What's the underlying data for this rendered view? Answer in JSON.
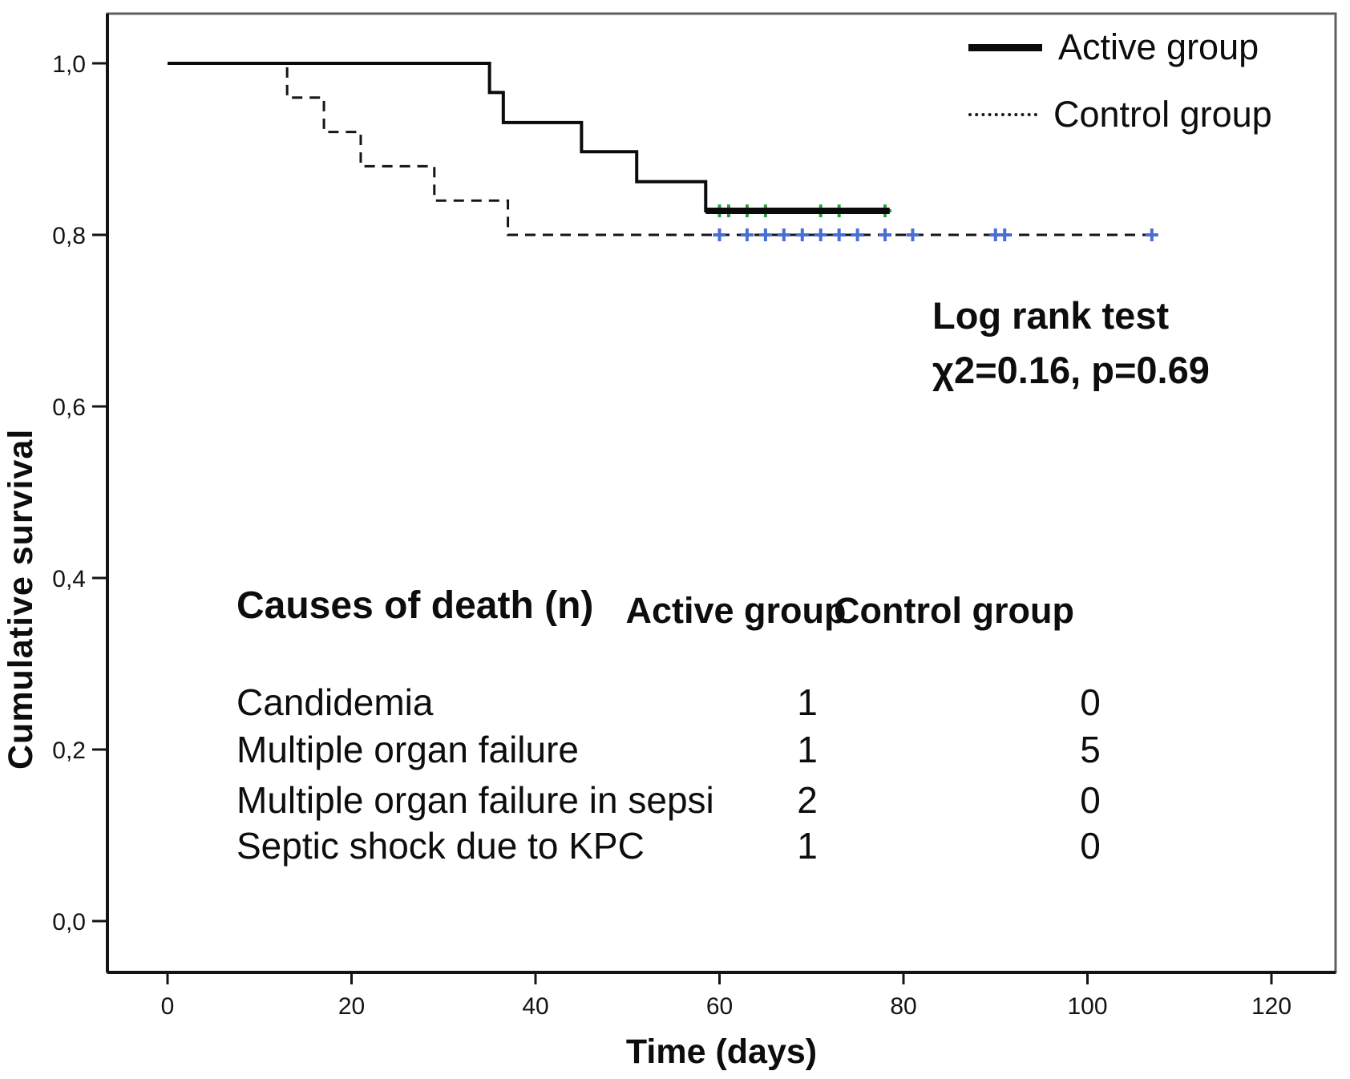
{
  "legend": {
    "items": [
      {
        "label": "Active group",
        "swatch": "solid-line"
      },
      {
        "label": "Control group",
        "swatch": "dotted-line"
      }
    ]
  },
  "stats_annotation": {
    "line1": "Log rank test",
    "line2": "χ2=0.16, p=0.69"
  },
  "causes_table": {
    "title": "Causes of death (n)",
    "col_active": "Active group",
    "col_control": "Control group",
    "rows": [
      {
        "cause": "Candidemia",
        "active": "1",
        "control": "0"
      },
      {
        "cause": "Multiple organ failure",
        "active": "1",
        "control": "5"
      },
      {
        "cause": "Multiple organ failure  in sepsi",
        "active": "2",
        "control": "0"
      },
      {
        "cause": "Septic shock due to KPC",
        "active": "1",
        "control": "0"
      }
    ]
  },
  "chart_data": {
    "type": "line",
    "subtype": "kaplan-meier-step",
    "title": "",
    "xlabel": "Time (days)",
    "ylabel": "Cumulative survival",
    "xlim": [
      -6.5,
      127
    ],
    "ylim": [
      -0.06,
      1.058
    ],
    "grid": false,
    "legend_position": "top-right-inside",
    "x_ticks": [
      {
        "v": 0,
        "label": "0"
      },
      {
        "v": 20,
        "label": "20"
      },
      {
        "v": 40,
        "label": "40"
      },
      {
        "v": 60,
        "label": "60"
      },
      {
        "v": 80,
        "label": "80"
      },
      {
        "v": 100,
        "label": "100"
      },
      {
        "v": 120,
        "label": "120"
      }
    ],
    "y_ticks": [
      {
        "v": 0.0,
        "label": "0,0"
      },
      {
        "v": 0.2,
        "label": "0,2"
      },
      {
        "v": 0.4,
        "label": "0,4"
      },
      {
        "v": 0.6,
        "label": "0,6"
      },
      {
        "v": 0.8,
        "label": "0,8"
      },
      {
        "v": 1.0,
        "label": "1,0"
      }
    ],
    "series": [
      {
        "name": "Active group",
        "line": "solid",
        "color": "#0a0a0a",
        "width": 4,
        "points": [
          [
            0,
            1.0
          ],
          [
            35,
            1.0
          ],
          [
            35,
            0.966
          ],
          [
            36.5,
            0.966
          ],
          [
            36.5,
            0.931
          ],
          [
            45,
            0.931
          ],
          [
            45,
            0.897
          ],
          [
            51,
            0.897
          ],
          [
            51,
            0.862
          ],
          [
            58.5,
            0.862
          ],
          [
            58.5,
            0.828
          ],
          [
            78.5,
            0.828
          ]
        ],
        "emphasis_tail": {
          "from": 58.5,
          "to": 78.5,
          "value": 0.828,
          "width": 8
        },
        "censor_marks": {
          "color": "#2e9e40",
          "value": 0.828,
          "times": [
            60,
            61,
            63,
            65,
            71,
            73,
            78
          ]
        }
      },
      {
        "name": "Control group",
        "line": "dashed",
        "color": "#151515",
        "width": 3,
        "points": [
          [
            0,
            1.0
          ],
          [
            13,
            1.0
          ],
          [
            13,
            0.96
          ],
          [
            17,
            0.96
          ],
          [
            17,
            0.92
          ],
          [
            21,
            0.92
          ],
          [
            21,
            0.88
          ],
          [
            29,
            0.88
          ],
          [
            29,
            0.84
          ],
          [
            37,
            0.84
          ],
          [
            37,
            0.8
          ],
          [
            107,
            0.8
          ]
        ],
        "censor_marks": {
          "color": "#4a6fd4",
          "value": 0.8,
          "times": [
            60,
            63,
            65,
            67,
            69,
            71,
            73,
            75,
            78,
            81,
            90,
            91,
            107
          ]
        }
      }
    ]
  }
}
